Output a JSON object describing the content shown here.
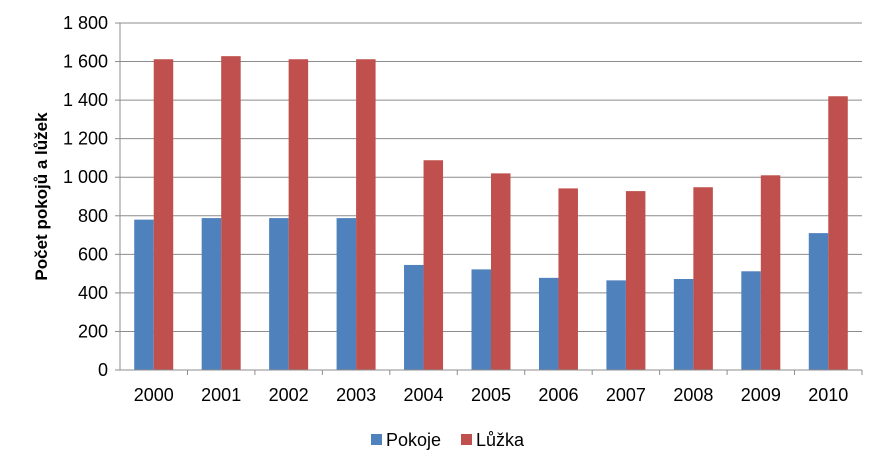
{
  "chart_data": {
    "type": "bar",
    "title": "",
    "xlabel": "",
    "ylabel": "Počet pokojů a lůžek",
    "ylim": [
      0,
      1800
    ],
    "yticks": [
      0,
      200,
      400,
      600,
      800,
      1000,
      1200,
      1400,
      1600,
      1800
    ],
    "ytick_labels": [
      "0",
      "200",
      "400",
      "600",
      "800",
      "1 000",
      "1 200",
      "1 400",
      "1 600",
      "1 800"
    ],
    "grid": true,
    "legend_position": "bottom",
    "categories": [
      "2000",
      "2001",
      "2002",
      "2003",
      "2004",
      "2005",
      "2006",
      "2007",
      "2008",
      "2009",
      "2010"
    ],
    "series": [
      {
        "name": "Pokoje",
        "color": "#4F81BD",
        "values": [
          780,
          788,
          788,
          788,
          545,
          522,
          478,
          465,
          472,
          512,
          710
        ]
      },
      {
        "name": "Lůžka",
        "color": "#C0504D",
        "values": [
          1612,
          1628,
          1612,
          1612,
          1088,
          1020,
          942,
          928,
          948,
          1010,
          1420
        ]
      }
    ]
  }
}
